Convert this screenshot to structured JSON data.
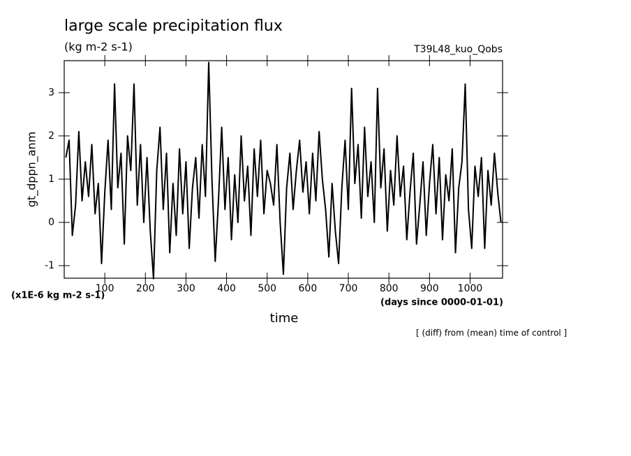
{
  "chart_data": {
    "type": "line",
    "title": "large scale precipitation flux",
    "subtitle": "(kg m-2 s-1)",
    "run_label": "T39L48_kuo_Qobs",
    "y_label": "gt_dppn_anm",
    "y_unit": "(x1E-6 kg m-2 s-1)",
    "x_label": "time",
    "x_unit": "(days since 0000-01-01)",
    "note": "[ (diff) from (mean) time of control ]",
    "xlim": [
      0,
      1080
    ],
    "ylim": [
      -1.29,
      3.74
    ],
    "xticks": [
      100,
      200,
      300,
      400,
      500,
      600,
      700,
      800,
      900,
      1000
    ],
    "yticks": [
      -1,
      0,
      1,
      2,
      3
    ],
    "color": "#000000",
    "x": [
      4,
      12,
      20,
      28,
      36,
      44,
      52,
      60,
      68,
      76,
      84,
      92,
      100,
      108,
      116,
      124,
      132,
      140,
      148,
      156,
      164,
      172,
      180,
      188,
      196,
      204,
      212,
      220,
      228,
      236,
      244,
      252,
      260,
      268,
      276,
      284,
      292,
      300,
      308,
      316,
      324,
      332,
      340,
      348,
      356,
      364,
      372,
      380,
      388,
      396,
      404,
      412,
      420,
      428,
      436,
      444,
      452,
      460,
      468,
      476,
      484,
      492,
      500,
      508,
      516,
      524,
      532,
      540,
      548,
      556,
      564,
      572,
      580,
      588,
      596,
      604,
      612,
      620,
      628,
      636,
      644,
      652,
      660,
      668,
      676,
      684,
      692,
      700,
      708,
      716,
      724,
      732,
      740,
      748,
      756,
      764,
      772,
      780,
      788,
      796,
      804,
      812,
      820,
      828,
      836,
      844,
      852,
      860,
      868,
      876,
      884,
      892,
      900,
      908,
      916,
      924,
      932,
      940,
      948,
      956,
      964,
      972,
      980,
      988,
      996,
      1004,
      1012,
      1020,
      1028,
      1036,
      1044,
      1052,
      1060,
      1068,
      1076
    ],
    "values": [
      1.5,
      1.9,
      -0.3,
      0.4,
      2.1,
      0.5,
      1.4,
      0.6,
      1.8,
      0.2,
      0.9,
      -0.95,
      0.7,
      1.9,
      0.3,
      3.2,
      0.8,
      1.6,
      -0.5,
      2.0,
      1.2,
      3.2,
      0.4,
      1.8,
      0.0,
      1.5,
      -0.2,
      -1.3,
      1.2,
      2.2,
      0.3,
      1.6,
      -0.7,
      0.9,
      -0.3,
      1.7,
      0.2,
      1.4,
      -0.6,
      0.8,
      1.5,
      0.1,
      1.8,
      0.6,
      3.7,
      1.0,
      -0.9,
      0.5,
      2.2,
      0.3,
      1.5,
      -0.4,
      1.1,
      0.0,
      2.0,
      0.5,
      1.3,
      -0.3,
      1.7,
      0.6,
      1.9,
      0.2,
      1.2,
      0.9,
      0.4,
      1.8,
      0.0,
      -1.2,
      0.8,
      1.6,
      0.3,
      1.2,
      1.9,
      0.7,
      1.4,
      0.2,
      1.6,
      0.5,
      2.1,
      1.0,
      0.3,
      -0.8,
      0.9,
      -0.2,
      -0.95,
      0.8,
      1.9,
      0.3,
      3.1,
      0.9,
      1.8,
      0.1,
      2.2,
      0.6,
      1.4,
      0.0,
      3.1,
      0.8,
      1.7,
      -0.2,
      1.2,
      0.4,
      2.0,
      0.6,
      1.3,
      -0.4,
      0.7,
      1.6,
      -0.5,
      0.4,
      1.4,
      -0.3,
      0.9,
      1.8,
      0.2,
      1.5,
      -0.4,
      1.1,
      0.5,
      1.7,
      -0.7,
      0.8,
      1.4,
      3.2,
      0.3,
      -0.6,
      1.3,
      0.6,
      1.5,
      -0.6,
      1.2,
      0.4,
      1.6,
      0.7,
      0.0
    ]
  }
}
